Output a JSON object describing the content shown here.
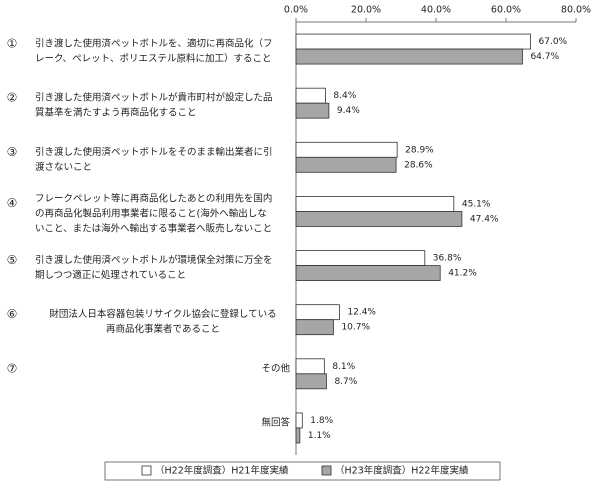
{
  "chart_data": {
    "type": "hbar",
    "category_markers": [
      "①",
      "②",
      "③",
      "④",
      "⑤",
      "⑥",
      "⑦",
      null
    ],
    "categories": [
      [
        "引き渡した使用済ペットボトルを、適切に再商品化（フ",
        "レーク、ペレット、ポリエステル原料に加工）すること"
      ],
      [
        "引き渡した使用済ペットボトルが貴市町村が設定した品",
        "質基準を満たすよう再商品化すること"
      ],
      [
        "引き渡した使用済ペットボトルをそのまま輸出業者に引",
        "渡さないこと"
      ],
      [
        "フレークペレット等に再商品化したあとの利用先を国内",
        "の再商品化製品利用事業者に限ること(海外へ輸出しな",
        "いこと、または海外へ輸出する事業者へ販売しないこと"
      ],
      [
        "引き渡した使用済ペットボトルが環境保全対策に万全を",
        "期しつつ適正に処理されていること"
      ],
      [
        "財団法人日本容器包装リサイクル協会に登録している",
        "再商品化事業者であること"
      ],
      [
        "その他"
      ],
      [
        "無回答"
      ]
    ],
    "series": [
      {
        "name": "（H22年度調査）H21年度実績",
        "color": "#ffffff",
        "values": [
          67.0,
          8.4,
          28.9,
          45.1,
          36.8,
          12.4,
          8.1,
          1.8
        ],
        "value_labels": [
          "67.0%",
          "8.4%",
          "28.9%",
          "45.1%",
          "36.8%",
          "12.4%",
          "8.1%",
          "1.8%"
        ]
      },
      {
        "name": "（H23年度調査）H22年度実績",
        "color": "#a6a6a6",
        "values": [
          64.7,
          9.4,
          28.6,
          47.4,
          41.2,
          10.7,
          8.7,
          1.1
        ],
        "value_labels": [
          "64.7%",
          "9.4%",
          "28.6%",
          "47.4%",
          "41.2%",
          "10.7%",
          "8.7%",
          "1.1%"
        ]
      }
    ],
    "xlim": [
      0,
      80
    ],
    "xticks": [
      {
        "value": 0,
        "label": "0.0%"
      },
      {
        "value": 20,
        "label": "20.0%"
      },
      {
        "value": 40,
        "label": "40.0%"
      },
      {
        "value": 60,
        "label": "60.0%"
      },
      {
        "value": 80,
        "label": "80.0%"
      }
    ],
    "grid": false
  }
}
